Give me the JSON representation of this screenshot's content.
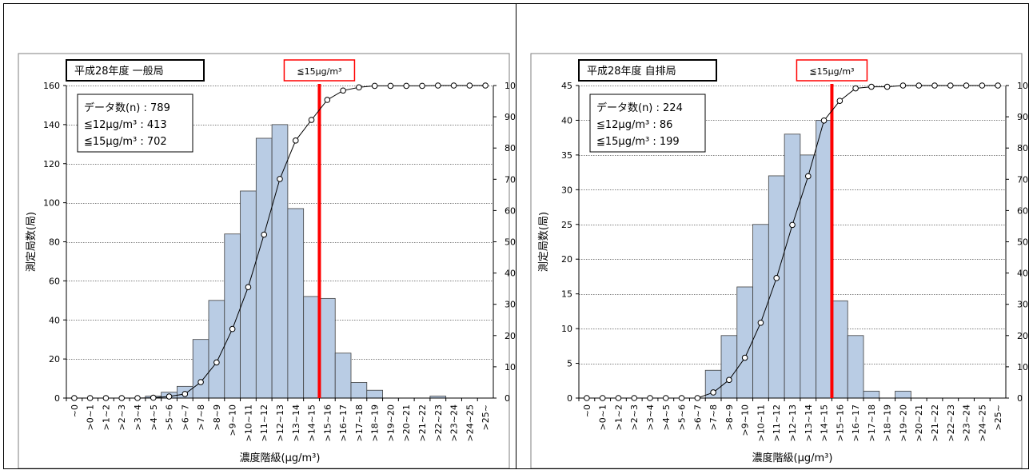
{
  "chart_data": [
    {
      "type": "bar",
      "title": "平成28年度 一般局",
      "stats": [
        "データ数(n) : 789",
        "≦12μg/m³ : 413",
        "≦15μg/m³ : 702"
      ],
      "threshold_label": "≦15μg/m³",
      "threshold_category": ">14~15",
      "xlabel": "濃度階級(μg/m³)",
      "ylabel": "測定局数(局)",
      "ylim": [
        0,
        160
      ],
      "yticks": [
        0,
        20,
        40,
        60,
        80,
        100,
        120,
        140,
        160
      ],
      "y2lim": [
        0,
        100
      ],
      "y2ticks": [
        0,
        10,
        20,
        30,
        40,
        50,
        60,
        70,
        80,
        90,
        100
      ],
      "categories": [
        "~0",
        ">0~1",
        ">1~2",
        ">2~3",
        ">3~4",
        ">4~5",
        ">5~6",
        ">6~7",
        ">7~8",
        ">8~9",
        ">9~10",
        ">10~11",
        ">11~12",
        ">12~13",
        ">13~14",
        ">14~15",
        ">15~16",
        ">16~17",
        ">17~18",
        ">18~19",
        ">19~20",
        ">20~21",
        ">21~22",
        ">22~23",
        ">23~24",
        ">24~25",
        ">25~"
      ],
      "series": [
        {
          "name": "",
          "values": [
            0,
            0,
            0,
            0,
            0,
            1,
            3,
            6,
            30,
            50,
            84,
            106,
            133,
            140,
            97,
            52,
            51,
            23,
            8,
            4,
            0,
            0,
            0,
            1,
            0,
            0,
            0
          ]
        },
        {
          "name": "",
          "type": "line",
          "axis": "right",
          "values": [
            0,
            0,
            0,
            0,
            0,
            0.1,
            0.5,
            1.3,
            5.1,
            11.4,
            22.1,
            35.5,
            52.3,
            70.1,
            82.4,
            89.0,
            95.4,
            98.4,
            99.4,
            99.9,
            99.9,
            99.9,
            99.9,
            100,
            100,
            100,
            100
          ]
        }
      ],
      "colors": {
        "bar": "#b9cce4",
        "threshold": "#ff0000",
        "line": "#000000"
      },
      "grid": true
    },
    {
      "type": "bar",
      "title": "平成28年度 自排局",
      "stats": [
        "データ数(n) : 224",
        "≦12μg/m³ : 86",
        "≦15μg/m³ : 199"
      ],
      "threshold_label": "≦15μg/m³",
      "threshold_category": ">14~15",
      "xlabel": "濃度階級(μg/m³)",
      "ylabel": "測定局数(局)",
      "ylim": [
        0,
        45
      ],
      "yticks": [
        0,
        5,
        10,
        15,
        20,
        25,
        30,
        35,
        40,
        45
      ],
      "y2lim": [
        0,
        100
      ],
      "y2ticks": [
        0,
        10,
        20,
        30,
        40,
        50,
        60,
        70,
        80,
        90,
        100
      ],
      "categories": [
        "~0",
        ">0~1",
        ">1~2",
        ">2~3",
        ">3~4",
        ">4~5",
        ">5~6",
        ">6~7",
        ">7~8",
        ">8~9",
        ">9~10",
        ">10~11",
        ">11~12",
        ">12~13",
        ">13~14",
        ">14~15",
        ">15~16",
        ">16~17",
        ">17~18",
        ">18~19",
        ">19~20",
        ">20~21",
        ">21~22",
        ">22~23",
        ">23~24",
        ">24~25",
        ">25~"
      ],
      "series": [
        {
          "name": "",
          "values": [
            0,
            0,
            0,
            0,
            0,
            0,
            0,
            0,
            4,
            9,
            16,
            25,
            32,
            38,
            35,
            40,
            14,
            9,
            1,
            0,
            1,
            0,
            0,
            0,
            0,
            0,
            0
          ]
        },
        {
          "name": "",
          "type": "line",
          "axis": "right",
          "values": [
            0,
            0,
            0,
            0,
            0,
            0,
            0,
            0,
            1.8,
            5.8,
            12.9,
            24.1,
            38.4,
            55.4,
            71.0,
            88.8,
            95.1,
            99.1,
            99.6,
            99.6,
            100,
            100,
            100,
            100,
            100,
            100,
            100
          ]
        }
      ],
      "colors": {
        "bar": "#b9cce4",
        "threshold": "#ff0000",
        "line": "#000000"
      },
      "grid": true
    }
  ]
}
